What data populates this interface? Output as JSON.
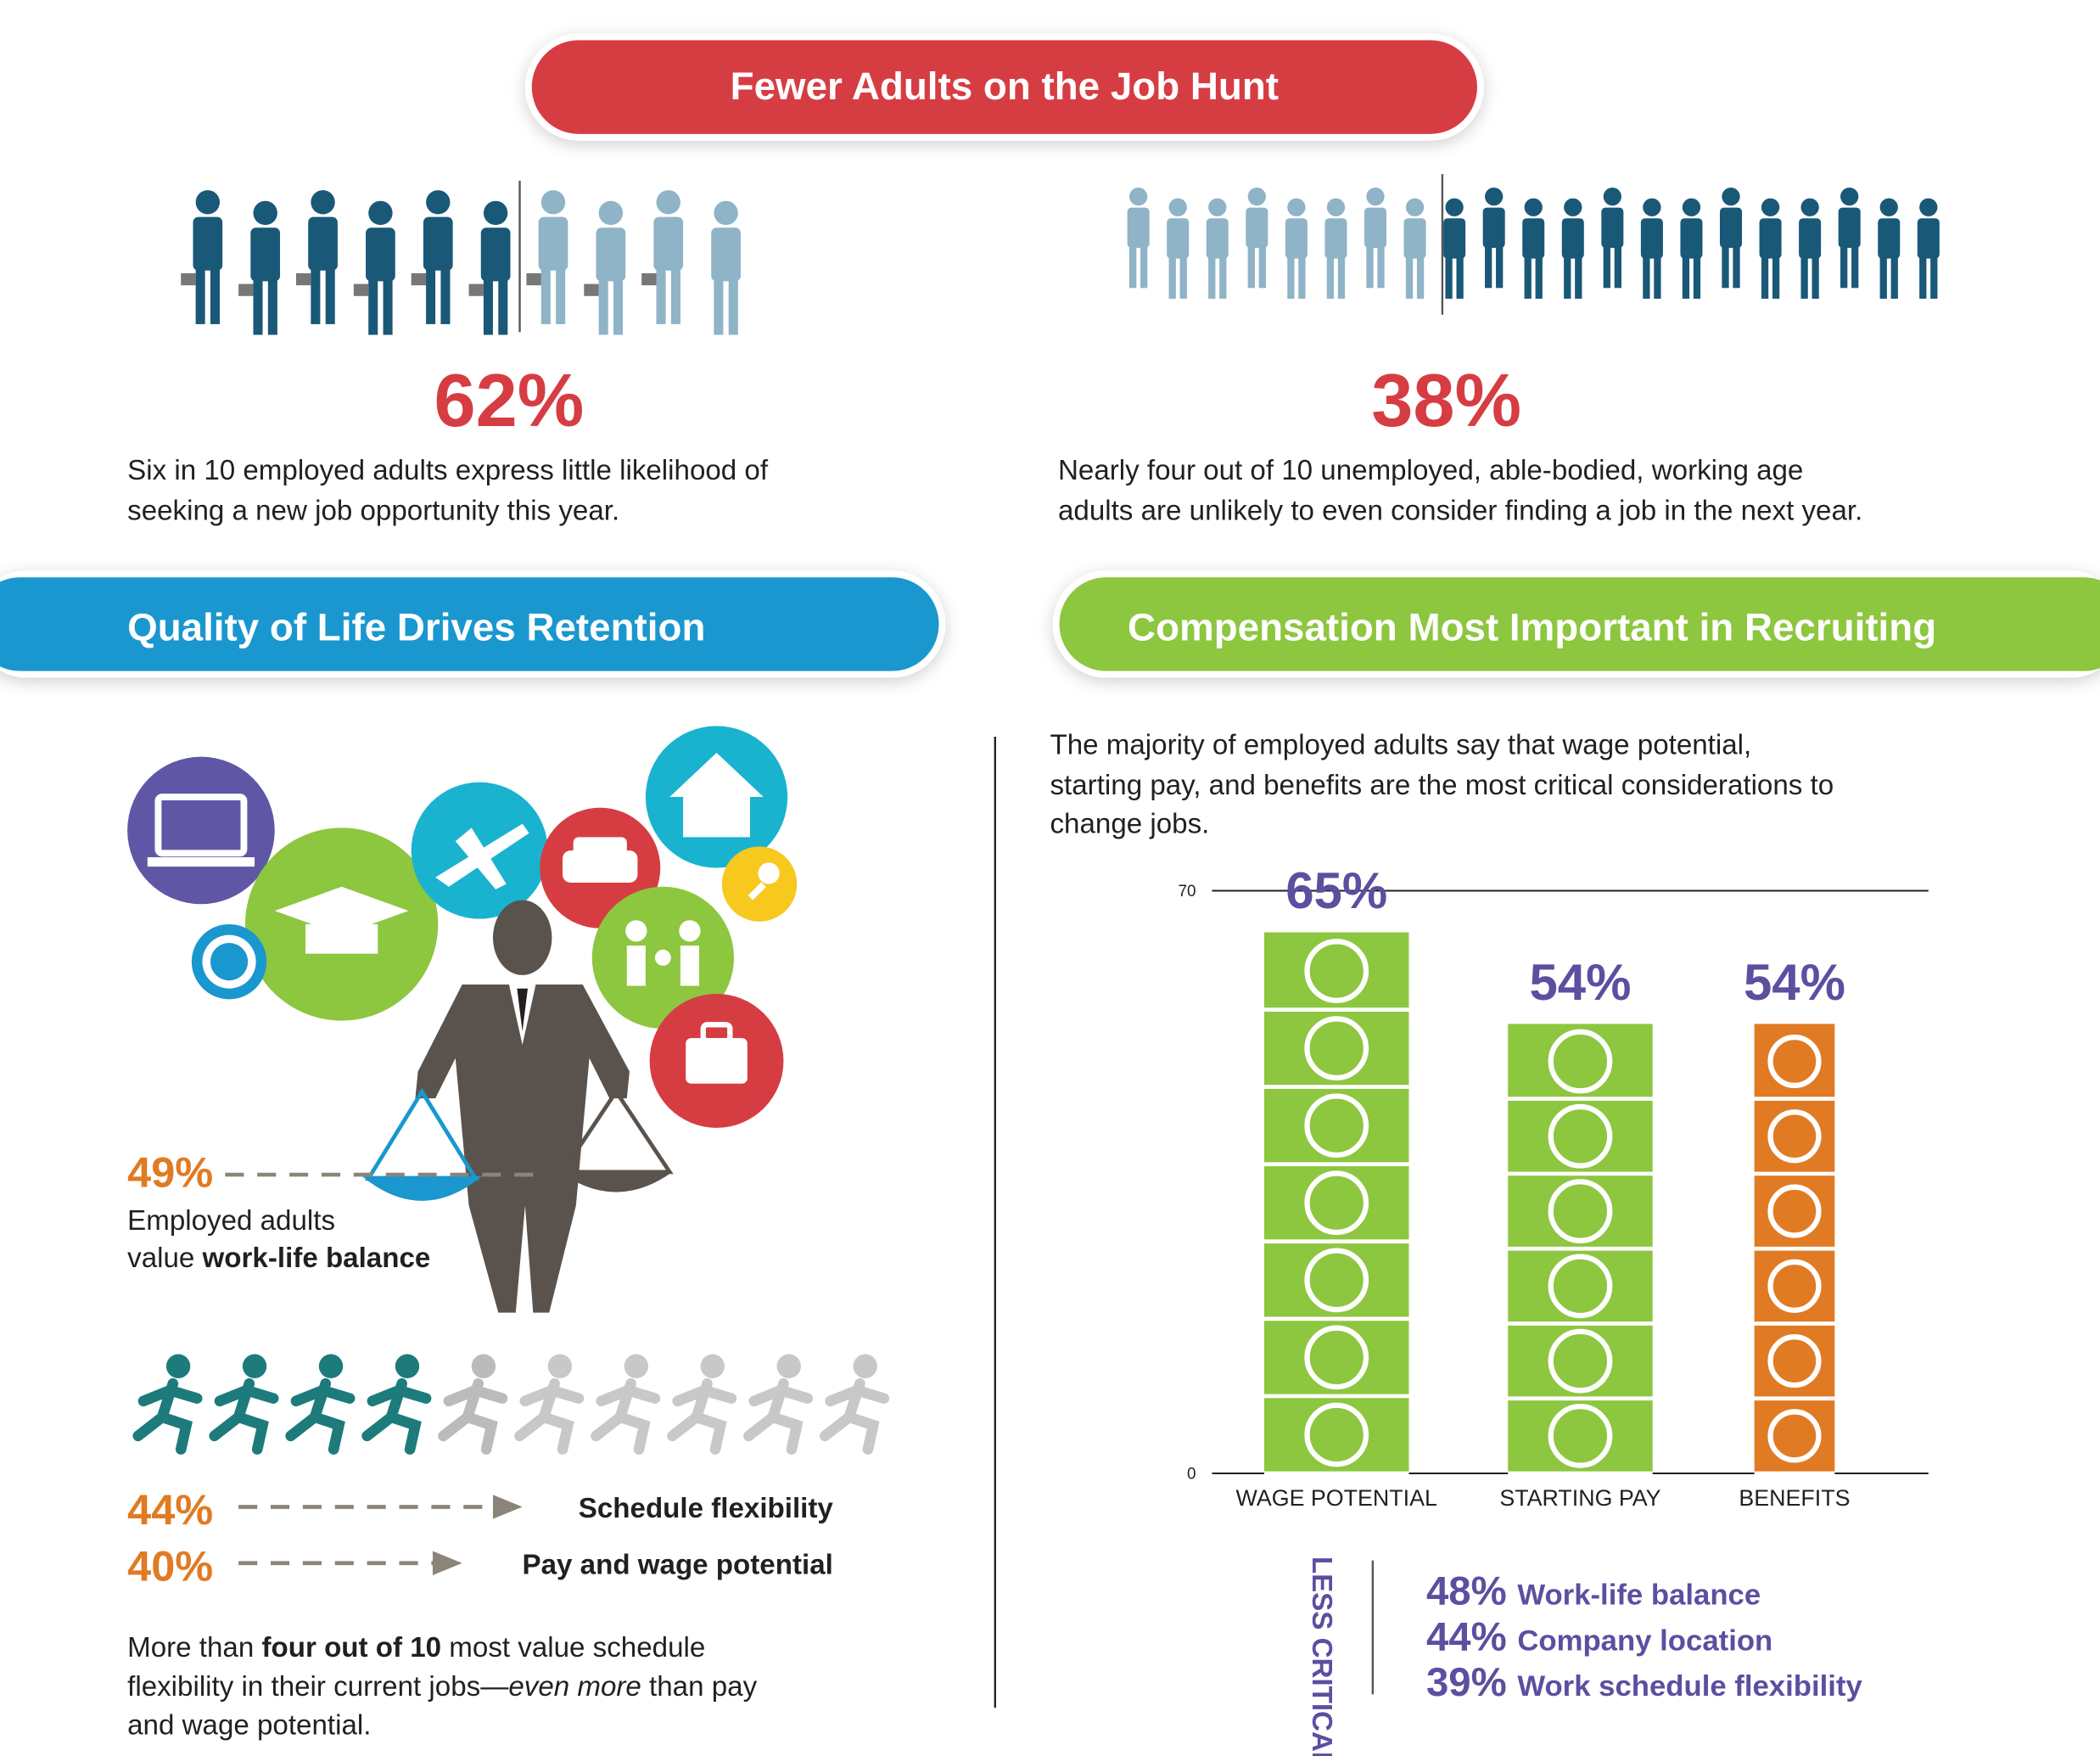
{
  "job_hunt": {
    "title": "Fewer Adults on the Job Hunt",
    "stats": [
      {
        "value": "62%",
        "lines": [
          "Six in 10 employed adults express little likelihood of",
          "seeking a new job opportunity this year."
        ]
      },
      {
        "value": "38%",
        "lines": [
          "Nearly four out of 10 unemployed, able-bodied, working age",
          "adults are unlikely to even consider finding a job in the next year."
        ]
      }
    ]
  },
  "retention": {
    "title": "Quality of Life Drives Retention",
    "balance": {
      "value": "49%",
      "line1": "Employed adults",
      "line2": [
        "value ",
        "work-life balance"
      ]
    },
    "factors": [
      {
        "value": "44%",
        "label": "Schedule flexibility"
      },
      {
        "value": "40%",
        "label": "Pay and wage potential"
      }
    ],
    "note": [
      [
        "More than ",
        "four out of 10",
        " most value schedule"
      ],
      [
        "flexibility in their current jobs—",
        "even more",
        " than pay"
      ],
      [
        "and wage potential."
      ]
    ]
  },
  "compensation": {
    "title": "Compensation Most Important in Recruiting",
    "intro": [
      "The majority of employed adults say that wage potential,",
      "starting pay, and benefits are the most critical considerations to",
      "change jobs."
    ],
    "less_critical": {
      "label": "LESS CRITICAL",
      "items": [
        {
          "value": "48%",
          "text": "Work-life balance"
        },
        {
          "value": "44%",
          "text": "Company location"
        },
        {
          "value": "39%",
          "text": "Work schedule flexibility"
        }
      ]
    }
  },
  "chart_data": {
    "type": "bar",
    "categories": [
      "WAGE POTENTIAL",
      "STARTING PAY",
      "BENEFITS"
    ],
    "values": [
      65,
      54,
      54
    ],
    "value_labels": [
      "65%",
      "54%",
      "54%"
    ],
    "colors": [
      "#8dc63f",
      "#8dc63f",
      "#e07b24"
    ],
    "label_color": "#5b4fa0",
    "ylim": [
      0,
      70
    ],
    "yticks": [
      0,
      70
    ]
  }
}
